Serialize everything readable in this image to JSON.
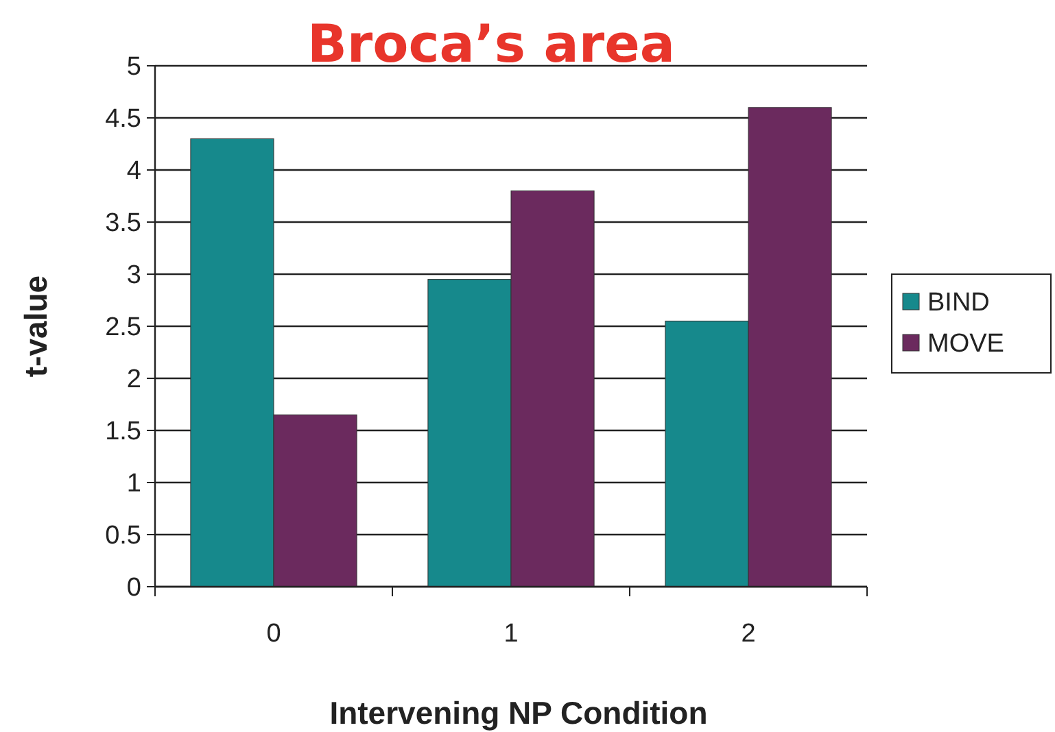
{
  "chart_data": {
    "type": "bar",
    "title": "Broca’s area",
    "xlabel": "Intervening NP Condition",
    "ylabel": "t-value",
    "categories": [
      "0",
      "1",
      "2"
    ],
    "series": [
      {
        "name": "BIND",
        "color": "#16898c",
        "values": [
          4.3,
          2.95,
          2.55
        ]
      },
      {
        "name": "MOVE",
        "color": "#6b2a5e",
        "values": [
          1.65,
          3.8,
          4.6
        ]
      }
    ],
    "ylim": [
      0,
      5
    ],
    "yticks": [
      0,
      0.5,
      1,
      1.5,
      2,
      2.5,
      3,
      3.5,
      4,
      4.5,
      5
    ],
    "grid": "y",
    "legend": "right"
  }
}
